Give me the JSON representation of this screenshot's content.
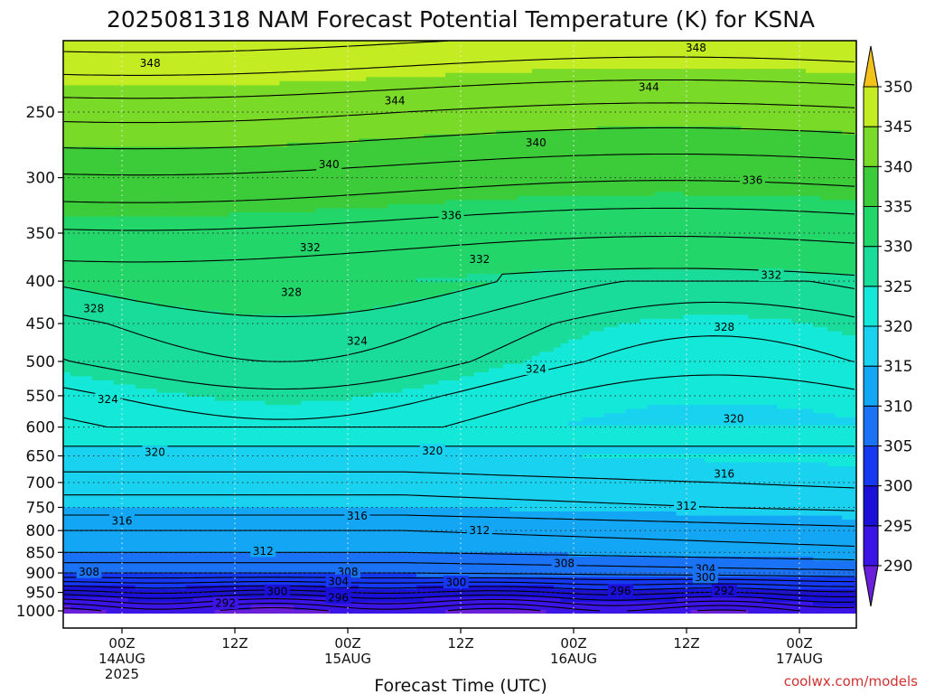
{
  "title": "2025081318 NAM Forecast Potential Temperature (K) for KSNA",
  "xlabel": "Forecast Time (UTC)",
  "credit": "coolwx.com/models",
  "chart_data": {
    "type": "heatmap",
    "title": "2025081318 NAM Forecast Potential Temperature (K) for KSNA",
    "xlabel": "Forecast Time (UTC)",
    "ylabel": "",
    "y_scale": "log-pressure (inverted)",
    "ylim": [
      1000,
      200
    ],
    "xlim_hours": [
      -6,
      70
    ],
    "x_ticks": [
      {
        "hour": 0,
        "line1": "00Z",
        "line2": "14AUG",
        "line3": "2025"
      },
      {
        "hour": 12,
        "line1": "12Z",
        "line2": "",
        "line3": ""
      },
      {
        "hour": 24,
        "line1": "00Z",
        "line2": "15AUG",
        "line3": ""
      },
      {
        "hour": 36,
        "line1": "12Z",
        "line2": "",
        "line3": ""
      },
      {
        "hour": 48,
        "line1": "00Z",
        "line2": "16AUG",
        "line3": ""
      },
      {
        "hour": 60,
        "line1": "12Z",
        "line2": "",
        "line3": ""
      },
      {
        "hour": 72,
        "line1": "00Z",
        "line2": "17AUG",
        "line3": ""
      }
    ],
    "y_ticks": [
      250,
      300,
      350,
      400,
      450,
      500,
      550,
      600,
      650,
      700,
      750,
      800,
      850,
      900,
      950,
      1000
    ],
    "colorbar": {
      "levels": [
        290,
        295,
        300,
        305,
        310,
        315,
        320,
        325,
        330,
        335,
        340,
        345,
        350
      ],
      "colors": [
        "#6a1fd8",
        "#3b14e6",
        "#1a10d8",
        "#1538f0",
        "#1a72f5",
        "#12a6f5",
        "#18d2ef",
        "#14e8d8",
        "#1adc9a",
        "#22d66a",
        "#3ccc3a",
        "#7ada28",
        "#c4ec22",
        "#fcfa10",
        "#f2c21a"
      ],
      "extend": "both"
    },
    "ground_color": "#a0522d",
    "grid": "dotted",
    "contour_interval": 2,
    "contour_labels": [
      {
        "value": 348,
        "hour": 3,
        "p": 218
      },
      {
        "value": 348,
        "hour": 61,
        "p": 209
      },
      {
        "value": 344,
        "hour": 29,
        "p": 242
      },
      {
        "value": 344,
        "hour": 56,
        "p": 233
      },
      {
        "value": 340,
        "hour": 22,
        "p": 289
      },
      {
        "value": 340,
        "hour": 44,
        "p": 272
      },
      {
        "value": 336,
        "hour": 35,
        "p": 333
      },
      {
        "value": 336,
        "hour": 67,
        "p": 302
      },
      {
        "value": 332,
        "hour": 20,
        "p": 364
      },
      {
        "value": 332,
        "hour": 38,
        "p": 376
      },
      {
        "value": 332,
        "hour": 69,
        "p": 393
      },
      {
        "value": 328,
        "hour": -3,
        "p": 431
      },
      {
        "value": 328,
        "hour": 18,
        "p": 412
      },
      {
        "value": 328,
        "hour": 64,
        "p": 454
      },
      {
        "value": 324,
        "hour": 25,
        "p": 472
      },
      {
        "value": 324,
        "hour": 44,
        "p": 510
      },
      {
        "value": 324,
        "hour": -1.5,
        "p": 555
      },
      {
        "value": 320,
        "hour": 65,
        "p": 586
      },
      {
        "value": 320,
        "hour": 3.5,
        "p": 643
      },
      {
        "value": 320,
        "hour": 33,
        "p": 640
      },
      {
        "value": 316,
        "hour": 64,
        "p": 683
      },
      {
        "value": 316,
        "hour": 25,
        "p": 767
      },
      {
        "value": 316,
        "hour": 0,
        "p": 778
      },
      {
        "value": 312,
        "hour": 60,
        "p": 746
      },
      {
        "value": 312,
        "hour": 38,
        "p": 799
      },
      {
        "value": 312,
        "hour": 15,
        "p": 846
      },
      {
        "value": 308,
        "hour": -3.5,
        "p": 897
      },
      {
        "value": 308,
        "hour": 24,
        "p": 897
      },
      {
        "value": 308,
        "hour": 47,
        "p": 875
      },
      {
        "value": 304,
        "hour": 23,
        "p": 920
      },
      {
        "value": 304,
        "hour": 62,
        "p": 889
      },
      {
        "value": 300,
        "hour": 16.5,
        "p": 946
      },
      {
        "value": 300,
        "hour": 35.5,
        "p": 923
      },
      {
        "value": 300,
        "hour": 62,
        "p": 910
      },
      {
        "value": 296,
        "hour": 23,
        "p": 963
      },
      {
        "value": 296,
        "hour": 53,
        "p": 945
      },
      {
        "value": 292,
        "hour": 11,
        "p": 978
      },
      {
        "value": 292,
        "hour": 64,
        "p": 945
      }
    ]
  }
}
